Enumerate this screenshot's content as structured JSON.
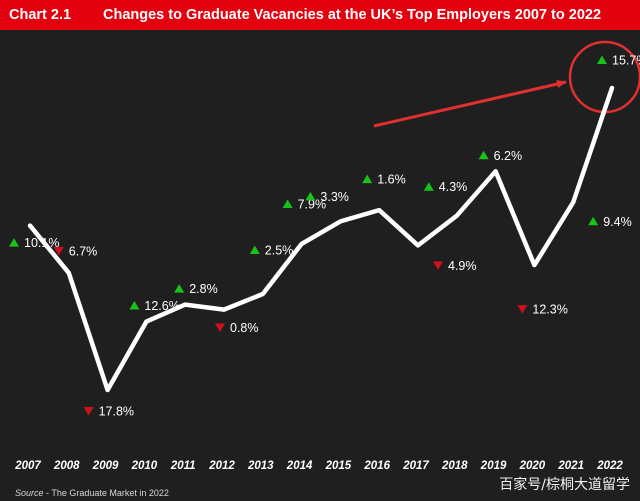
{
  "header": {
    "chart_number": "Chart 2.1",
    "title": "Changes to Graduate Vacancies at the UK’s Top Employers 2007 to 2022"
  },
  "source": {
    "label": "Source",
    "text": " - The Graduate Market in 2022"
  },
  "watermark": "百家号/棕桐大道留学",
  "colors": {
    "background": "#1f1f1f",
    "header": "#e3000f",
    "line": "#ffffff",
    "up": "#19c219",
    "down": "#d0101a",
    "highlight": "#e03030"
  },
  "chart_data": {
    "type": "line",
    "title": "Changes to Graduate Vacancies at the UK’s Top Employers 2007 to 2022",
    "xlabel": "",
    "ylabel": "",
    "grid": false,
    "categories": [
      "2007",
      "2008",
      "2009",
      "2010",
      "2011",
      "2012",
      "2013",
      "2014",
      "2015",
      "2016",
      "2017",
      "2018",
      "2019",
      "2020",
      "2021",
      "2022"
    ],
    "change_labels": [
      "10.1%",
      "6.7%",
      "17.8%",
      "12.6%",
      "2.8%",
      "0.8%",
      "2.5%",
      "7.9%",
      "3.3%",
      "1.6%",
      "4.9%",
      "4.3%",
      "6.2%",
      "12.3%",
      "9.4%",
      "15.7%"
    ],
    "change_direction": [
      "up",
      "down",
      "down",
      "up",
      "up",
      "down",
      "up",
      "up",
      "up",
      "up",
      "down",
      "up",
      "up",
      "down",
      "up",
      "up"
    ],
    "series": [
      {
        "values": [
          100,
          93.3,
          76.7,
          86.4,
          88.8,
          88.1,
          90.3,
          97.4,
          100.6,
          102.2,
          97.2,
          101.4,
          107.7,
          94.4,
          103.3,
          119.5
        ]
      }
    ],
    "annotations": [
      {
        "type": "circle",
        "target": "2022"
      },
      {
        "type": "arrow",
        "target": "2022"
      }
    ]
  }
}
